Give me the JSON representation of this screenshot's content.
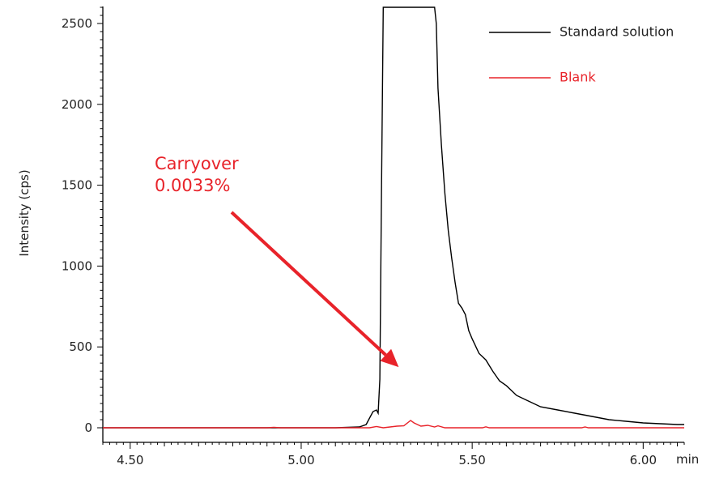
{
  "chart_data": {
    "type": "line",
    "title": "",
    "xlabel": "min",
    "ylabel": "Intensity (cps)",
    "xlim": [
      4.42,
      6.12
    ],
    "ylim": [
      0,
      2600
    ],
    "x_ticks": [
      4.5,
      5.0,
      5.5,
      6.0
    ],
    "x_tick_labels": [
      "4.50",
      "5.00",
      "5.50",
      "6.00"
    ],
    "y_ticks": [
      0,
      500,
      1000,
      1500,
      2000,
      2500
    ],
    "y_tick_labels": [
      "0",
      "500",
      "1000",
      "1500",
      "2000",
      "2500"
    ],
    "grid": false,
    "legend": "top-right",
    "series": [
      {
        "name": "Standard solution",
        "color": "#000000",
        "x": [
          4.42,
          4.8,
          5.1,
          5.17,
          5.19,
          5.2,
          5.21,
          5.22,
          5.225,
          5.23,
          5.235,
          5.24,
          5.39,
          5.395,
          5.4,
          5.41,
          5.42,
          5.43,
          5.44,
          5.45,
          5.46,
          5.47,
          5.48,
          5.49,
          5.5,
          5.52,
          5.54,
          5.56,
          5.58,
          5.6,
          5.63,
          5.66,
          5.7,
          5.75,
          5.8,
          5.85,
          5.9,
          5.95,
          6.0,
          6.05,
          6.1,
          6.12
        ],
        "values": [
          0,
          0,
          0,
          5,
          20,
          60,
          100,
          110,
          90,
          300,
          1500,
          2600,
          2600,
          2500,
          2100,
          1750,
          1450,
          1220,
          1050,
          900,
          770,
          740,
          700,
          600,
          550,
          460,
          420,
          350,
          290,
          260,
          200,
          170,
          130,
          110,
          90,
          70,
          50,
          40,
          30,
          25,
          20,
          20
        ]
      },
      {
        "name": "Blank",
        "color": "#e8232a",
        "x": [
          4.42,
          4.9,
          4.92,
          4.94,
          5.2,
          5.22,
          5.24,
          5.28,
          5.3,
          5.32,
          5.33,
          5.35,
          5.37,
          5.39,
          5.4,
          5.42,
          5.53,
          5.54,
          5.55,
          5.82,
          5.83,
          5.84,
          6.12
        ],
        "values": [
          0,
          0,
          3,
          0,
          0,
          8,
          0,
          10,
          12,
          45,
          30,
          10,
          15,
          5,
          12,
          0,
          0,
          6,
          0,
          0,
          5,
          0,
          0
        ]
      }
    ],
    "annotations": [
      {
        "text": "Carryover\n0.0033%",
        "color": "#e8232a",
        "arrow_to": [
          5.29,
          200
        ]
      }
    ]
  }
}
